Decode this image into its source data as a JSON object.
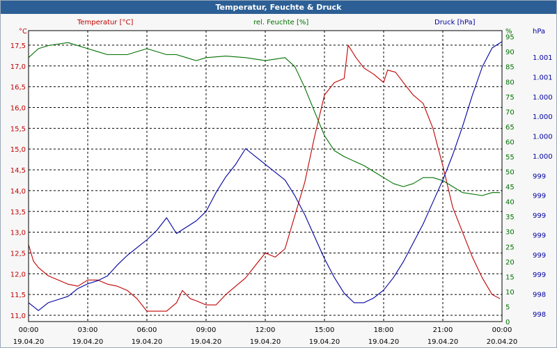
{
  "window": {
    "title": "Temperatur, Feuchte & Druck"
  },
  "colors": {
    "temperature": "#c00000",
    "humidity": "#007000",
    "pressure": "#0000a0",
    "titlebar": "#2c5f95"
  },
  "chart_data": {
    "type": "line",
    "series": [
      {
        "name": "Temperatur [°C]",
        "unit": "°C",
        "axis": "left",
        "color": "#c00000",
        "points": [
          [
            0,
            12.7
          ],
          [
            0.25,
            12.3
          ],
          [
            0.5,
            12.15
          ],
          [
            1,
            11.95
          ],
          [
            1.5,
            11.85
          ],
          [
            2,
            11.75
          ],
          [
            2.5,
            11.7
          ],
          [
            3,
            11.85
          ],
          [
            3.5,
            11.85
          ],
          [
            4,
            11.75
          ],
          [
            4.5,
            11.7
          ],
          [
            5,
            11.6
          ],
          [
            5.5,
            11.4
          ],
          [
            6,
            11.1
          ],
          [
            6.5,
            11.1
          ],
          [
            7,
            11.1
          ],
          [
            7.5,
            11.3
          ],
          [
            7.8,
            11.6
          ],
          [
            8.2,
            11.4
          ],
          [
            8.5,
            11.35
          ],
          [
            9,
            11.25
          ],
          [
            9.5,
            11.25
          ],
          [
            10,
            11.5
          ],
          [
            10.5,
            11.7
          ],
          [
            11,
            11.9
          ],
          [
            11.5,
            12.2
          ],
          [
            12,
            12.5
          ],
          [
            12.5,
            12.4
          ],
          [
            13,
            12.6
          ],
          [
            13.5,
            13.4
          ],
          [
            14,
            14.2
          ],
          [
            14.5,
            15.3
          ],
          [
            15,
            16.3
          ],
          [
            15.5,
            16.6
          ],
          [
            16,
            16.7
          ],
          [
            16.2,
            17.5
          ],
          [
            16.6,
            17.2
          ],
          [
            17,
            16.95
          ],
          [
            17.5,
            16.8
          ],
          [
            18,
            16.6
          ],
          [
            18.2,
            16.9
          ],
          [
            18.6,
            16.85
          ],
          [
            19,
            16.6
          ],
          [
            19.5,
            16.3
          ],
          [
            20,
            16.1
          ],
          [
            20.5,
            15.5
          ],
          [
            21,
            14.6
          ],
          [
            21.5,
            13.6
          ],
          [
            22,
            13.0
          ],
          [
            22.5,
            12.4
          ],
          [
            23,
            11.9
          ],
          [
            23.5,
            11.5
          ],
          [
            23.9,
            11.4
          ]
        ]
      },
      {
        "name": "rel. Feuchte [%]",
        "unit": "%",
        "axis": "right-inner",
        "color": "#007000",
        "points": [
          [
            0,
            88
          ],
          [
            0.5,
            91
          ],
          [
            1,
            92
          ],
          [
            2,
            93
          ],
          [
            3,
            91
          ],
          [
            3.5,
            90
          ],
          [
            4,
            89
          ],
          [
            5,
            89
          ],
          [
            6,
            91
          ],
          [
            7,
            89
          ],
          [
            7.5,
            89
          ],
          [
            8,
            88
          ],
          [
            8.5,
            87
          ],
          [
            9,
            88
          ],
          [
            10,
            88.5
          ],
          [
            11,
            88
          ],
          [
            12,
            87
          ],
          [
            13,
            88
          ],
          [
            13.5,
            85
          ],
          [
            14,
            78
          ],
          [
            14.5,
            70
          ],
          [
            15,
            62
          ],
          [
            15.5,
            57
          ],
          [
            16,
            55
          ],
          [
            17,
            52
          ],
          [
            17.5,
            50
          ],
          [
            18,
            48
          ],
          [
            18.5,
            46
          ],
          [
            19,
            45
          ],
          [
            19.5,
            46
          ],
          [
            20,
            48
          ],
          [
            20.5,
            48
          ],
          [
            21,
            47
          ],
          [
            21.5,
            45
          ],
          [
            22,
            43
          ],
          [
            23,
            42
          ],
          [
            23.5,
            43
          ],
          [
            23.9,
            43
          ]
        ]
      },
      {
        "name": "Druck [hPa]",
        "unit": "hPa",
        "axis": "right-outer",
        "color": "#0000a0",
        "points": [
          [
            0,
            998.72
          ],
          [
            0.5,
            998.67
          ],
          [
            1,
            998.72
          ],
          [
            1.5,
            998.74
          ],
          [
            2,
            998.76
          ],
          [
            2.5,
            998.81
          ],
          [
            3,
            998.84
          ],
          [
            3.5,
            998.86
          ],
          [
            4,
            998.89
          ],
          [
            4.5,
            998.96
          ],
          [
            5,
            999.02
          ],
          [
            5.5,
            999.07
          ],
          [
            6,
            999.12
          ],
          [
            6.5,
            999.18
          ],
          [
            7,
            999.26
          ],
          [
            7.5,
            999.16
          ],
          [
            8,
            999.2
          ],
          [
            8.5,
            999.24
          ],
          [
            9,
            999.3
          ],
          [
            9.5,
            999.42
          ],
          [
            10,
            999.52
          ],
          [
            10.5,
            999.6
          ],
          [
            11,
            999.7
          ],
          [
            11.5,
            999.65
          ],
          [
            12,
            999.6
          ],
          [
            12.5,
            999.55
          ],
          [
            13,
            999.5
          ],
          [
            13.5,
            999.4
          ],
          [
            14,
            999.28
          ],
          [
            14.5,
            999.14
          ],
          [
            15,
            999.0
          ],
          [
            15.5,
            998.88
          ],
          [
            16,
            998.78
          ],
          [
            16.5,
            998.72
          ],
          [
            17,
            998.72
          ],
          [
            17.5,
            998.75
          ],
          [
            18,
            998.8
          ],
          [
            18.5,
            998.88
          ],
          [
            19,
            998.98
          ],
          [
            19.5,
            999.1
          ],
          [
            20,
            999.22
          ],
          [
            20.5,
            999.36
          ],
          [
            21,
            999.5
          ],
          [
            21.5,
            999.66
          ],
          [
            22,
            999.84
          ],
          [
            22.5,
            1000.04
          ],
          [
            23,
            1000.22
          ],
          [
            23.5,
            1000.34
          ],
          [
            24,
            1000.38
          ]
        ]
      }
    ],
    "x": {
      "min": 0,
      "max": 24,
      "ticks": [
        {
          "time": "00:00",
          "date": "19.04.20"
        },
        {
          "time": "03:00",
          "date": "19.04.20"
        },
        {
          "time": "06:00",
          "date": "19.04.20"
        },
        {
          "time": "09:00",
          "date": "19.04.20"
        },
        {
          "time": "12:00",
          "date": "19.04.20"
        },
        {
          "time": "15:00",
          "date": "19.04.20"
        },
        {
          "time": "18:00",
          "date": "19.04.20"
        },
        {
          "time": "21:00",
          "date": "19.04.20"
        },
        {
          "time": "00:00",
          "date": "20.04.20"
        }
      ]
    },
    "y_left": {
      "unit": "°C",
      "min": 10.85,
      "max": 17.85,
      "ticks": [
        11.0,
        11.5,
        12.0,
        12.5,
        13.0,
        13.5,
        14.0,
        14.5,
        15.0,
        15.5,
        16.0,
        16.5,
        17.0,
        17.5
      ],
      "tick_labels": [
        "11,0",
        "11,5",
        "12,0",
        "12,5",
        "13,0",
        "13,5",
        "14,0",
        "14,5",
        "15,0",
        "15,5",
        "16,0",
        "16,5",
        "17,0",
        "17,5"
      ]
    },
    "y_right_inner": {
      "unit": "%",
      "min": 0,
      "max": 97,
      "ticks": [
        0,
        5,
        10,
        15,
        20,
        25,
        30,
        35,
        40,
        45,
        50,
        55,
        60,
        65,
        70,
        75,
        80,
        85,
        90,
        95
      ],
      "tick_labels": [
        "0",
        "5",
        "10",
        "15",
        "20",
        "25",
        "30",
        "35",
        "40",
        "45",
        "50",
        "55",
        "60",
        "65",
        "70",
        "75",
        "80",
        "85",
        "90",
        "95"
      ]
    },
    "y_right_outer": {
      "unit": "hPa",
      "tick_labels": [
        "1.001",
        "1.001",
        "1.000",
        "1.000",
        "1.000",
        "1.000",
        "999",
        "999",
        "999",
        "999",
        "999",
        "999",
        "998",
        "998"
      ]
    },
    "grid": true
  }
}
